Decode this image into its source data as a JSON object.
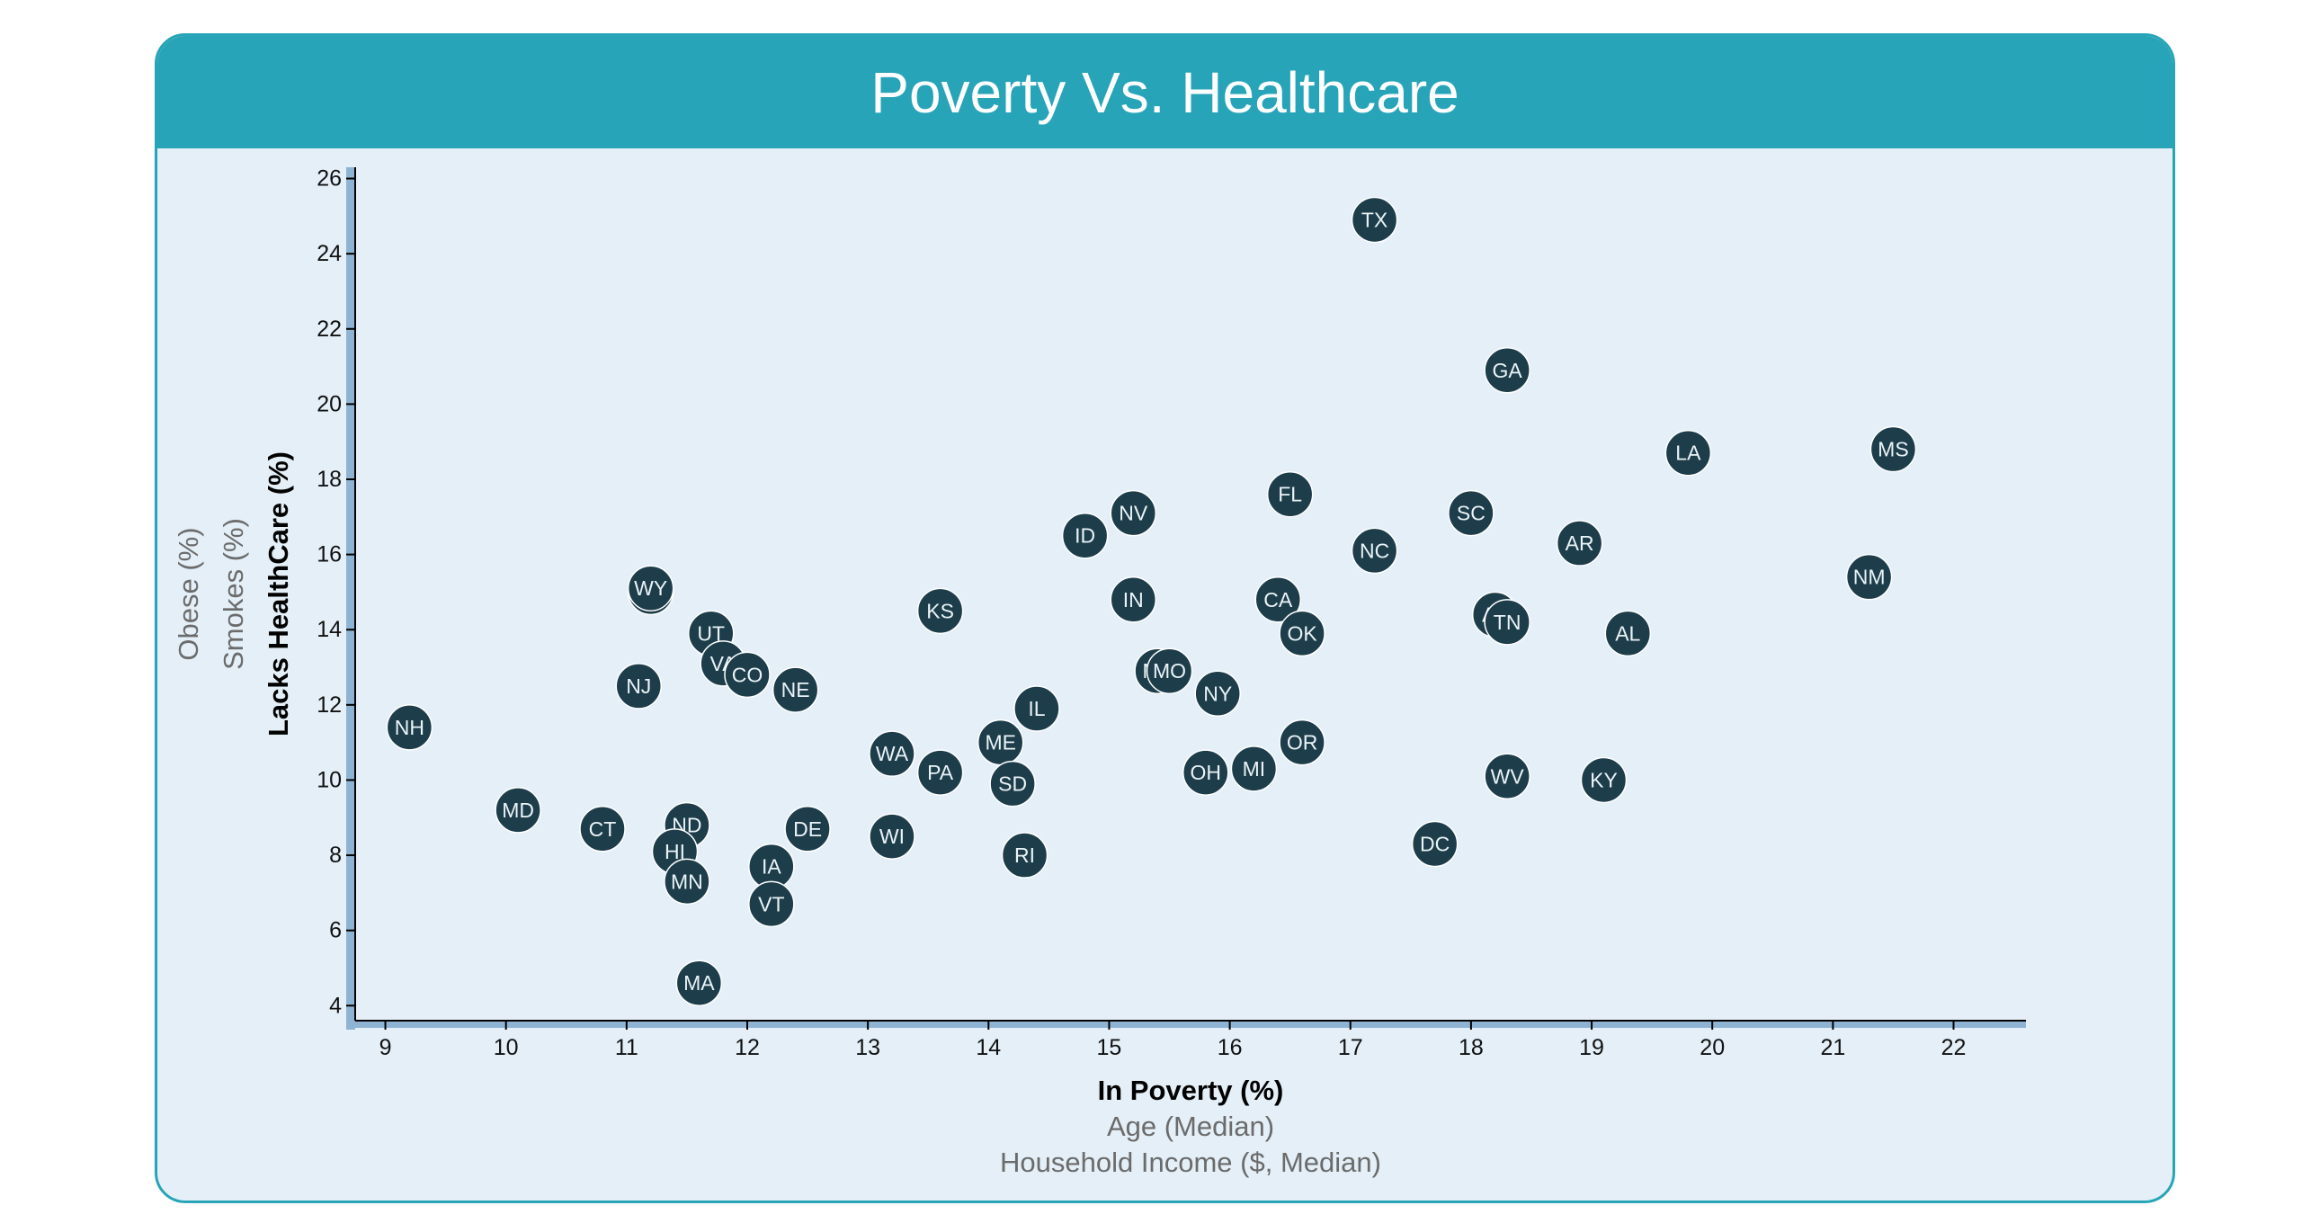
{
  "header": {
    "title": "Poverty Vs. Healthcare"
  },
  "colors": {
    "accent": "#27a4b8",
    "panel_bg": "#e4eff7",
    "marker": "#1d3d4a",
    "marker_text": "#eaf3f7",
    "axis_band": "#8fb3d3"
  },
  "axes": {
    "x_labels": [
      {
        "key": "poverty",
        "text": "In Poverty (%)",
        "active": true
      },
      {
        "key": "age",
        "text": "Age (Median)",
        "active": false
      },
      {
        "key": "income",
        "text": "Household Income ($, Median)",
        "active": false
      }
    ],
    "y_labels": [
      {
        "key": "healthcare",
        "text": "Lacks HealthCare (%)",
        "active": true
      },
      {
        "key": "smokes",
        "text": "Smokes (%)",
        "active": false
      },
      {
        "key": "obesity",
        "text": "Obese (%)",
        "active": false
      }
    ]
  },
  "chart_data": {
    "type": "scatter",
    "title": "Poverty Vs. Healthcare",
    "xlabel": "In Poverty (%)",
    "ylabel": "Lacks HealthCare (%)",
    "xlim": [
      8.75,
      22.6
    ],
    "ylim": [
      3.6,
      26.3
    ],
    "xticks": [
      9,
      10,
      11,
      12,
      13,
      14,
      15,
      16,
      17,
      18,
      19,
      20,
      21,
      22
    ],
    "yticks": [
      4,
      6,
      8,
      10,
      12,
      14,
      16,
      18,
      20,
      22,
      24,
      26
    ],
    "grid": false,
    "points": [
      {
        "label": "TX",
        "x": 17.2,
        "y": 24.9
      },
      {
        "label": "GA",
        "x": 18.3,
        "y": 20.9
      },
      {
        "label": "LA",
        "x": 19.8,
        "y": 18.7
      },
      {
        "label": "MS",
        "x": 21.5,
        "y": 18.8
      },
      {
        "label": "FL",
        "x": 16.5,
        "y": 17.6
      },
      {
        "label": "SC",
        "x": 18.0,
        "y": 17.1
      },
      {
        "label": "NV",
        "x": 15.2,
        "y": 17.1
      },
      {
        "label": "ID",
        "x": 14.8,
        "y": 16.5
      },
      {
        "label": "NC",
        "x": 17.2,
        "y": 16.1
      },
      {
        "label": "AR",
        "x": 18.9,
        "y": 16.3
      },
      {
        "label": "NM",
        "x": 21.3,
        "y": 15.4
      },
      {
        "label": "AK",
        "x": 11.2,
        "y": 15.0
      },
      {
        "label": "WY",
        "x": 11.2,
        "y": 15.1
      },
      {
        "label": "KS",
        "x": 13.6,
        "y": 14.5
      },
      {
        "label": "IN",
        "x": 15.2,
        "y": 14.8
      },
      {
        "label": "CA",
        "x": 16.4,
        "y": 14.8
      },
      {
        "label": "AZ",
        "x": 18.2,
        "y": 14.4
      },
      {
        "label": "TN",
        "x": 18.3,
        "y": 14.2
      },
      {
        "label": "OK",
        "x": 16.6,
        "y": 13.9
      },
      {
        "label": "AL",
        "x": 19.3,
        "y": 13.9
      },
      {
        "label": "UT",
        "x": 11.7,
        "y": 13.9
      },
      {
        "label": "VA",
        "x": 11.8,
        "y": 13.1
      },
      {
        "label": "CO",
        "x": 12.0,
        "y": 12.8
      },
      {
        "label": "MT",
        "x": 15.4,
        "y": 12.9
      },
      {
        "label": "MO",
        "x": 15.5,
        "y": 12.9
      },
      {
        "label": "NJ",
        "x": 11.1,
        "y": 12.5
      },
      {
        "label": "NE",
        "x": 12.4,
        "y": 12.4
      },
      {
        "label": "NY",
        "x": 15.9,
        "y": 12.3
      },
      {
        "label": "IL",
        "x": 14.4,
        "y": 11.9
      },
      {
        "label": "NH",
        "x": 9.2,
        "y": 11.4
      },
      {
        "label": "ME",
        "x": 14.1,
        "y": 11.0
      },
      {
        "label": "OR",
        "x": 16.6,
        "y": 11.0
      },
      {
        "label": "WA",
        "x": 13.2,
        "y": 10.7
      },
      {
        "label": "PA",
        "x": 13.6,
        "y": 10.2
      },
      {
        "label": "SD",
        "x": 14.2,
        "y": 9.9
      },
      {
        "label": "OH",
        "x": 15.8,
        "y": 10.2
      },
      {
        "label": "MI",
        "x": 16.2,
        "y": 10.3
      },
      {
        "label": "WV",
        "x": 18.3,
        "y": 10.1
      },
      {
        "label": "KY",
        "x": 19.1,
        "y": 10.0
      },
      {
        "label": "MD",
        "x": 10.1,
        "y": 9.2
      },
      {
        "label": "CT",
        "x": 10.8,
        "y": 8.7
      },
      {
        "label": "ND",
        "x": 11.5,
        "y": 8.8
      },
      {
        "label": "DE",
        "x": 12.5,
        "y": 8.7
      },
      {
        "label": "WI",
        "x": 13.2,
        "y": 8.5
      },
      {
        "label": "HI",
        "x": 11.4,
        "y": 8.1
      },
      {
        "label": "RI",
        "x": 14.3,
        "y": 8.0
      },
      {
        "label": "DC",
        "x": 17.7,
        "y": 8.3
      },
      {
        "label": "IA",
        "x": 12.2,
        "y": 7.7
      },
      {
        "label": "MN",
        "x": 11.5,
        "y": 7.3
      },
      {
        "label": "VT",
        "x": 12.2,
        "y": 6.7
      },
      {
        "label": "MA",
        "x": 11.6,
        "y": 4.6
      }
    ]
  }
}
